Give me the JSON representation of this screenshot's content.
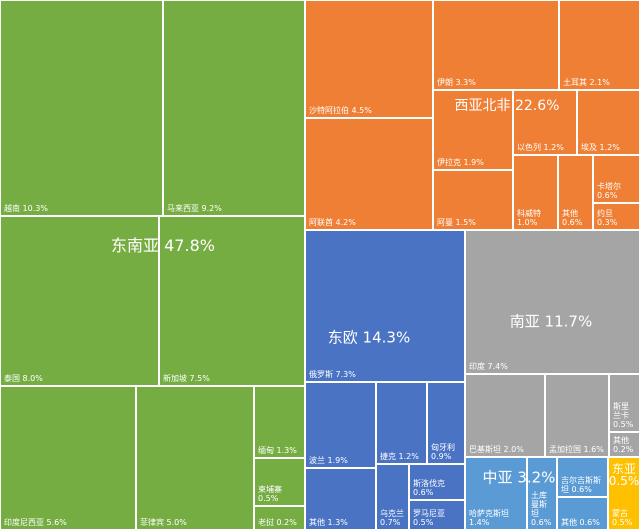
{
  "chart_data": {
    "type": "treemap",
    "colors": {
      "东南亚": "#76ad42",
      "西亚北非": "#ef7f34",
      "东欧": "#4a73c4",
      "南亚": "#a5a5a5",
      "中亚": "#5b9bd5",
      "东亚": "#ffc000"
    },
    "regions": [
      {
        "name": "东南亚",
        "value": 47.8,
        "label": "东南亚 47.8%",
        "items": [
          {
            "name": "越南",
            "value": 10.3,
            "label": "越南 10.3%"
          },
          {
            "name": "马来西亚",
            "value": 9.2,
            "label": "马来西亚 9.2%"
          },
          {
            "name": "泰国",
            "value": 8.0,
            "label": "泰国 8.0%"
          },
          {
            "name": "新加坡",
            "value": 7.5,
            "label": "新加坡 7.5%"
          },
          {
            "name": "印度尼西亚",
            "value": 5.6,
            "label": "印度尼西亚 5.6%"
          },
          {
            "name": "菲律宾",
            "value": 5.0,
            "label": "菲律宾 5.0%"
          },
          {
            "name": "缅甸",
            "value": 1.3,
            "label": "缅甸 1.3%"
          },
          {
            "name": "柬埔寨",
            "value": 0.5,
            "label": "柬埔寨\n0.5%"
          },
          {
            "name": "老挝",
            "value": 0.2,
            "label": "老挝 0.2%"
          }
        ]
      },
      {
        "name": "西亚北非",
        "value": 22.6,
        "label": "西亚北非 22.6%",
        "items": [
          {
            "name": "沙特阿拉伯",
            "value": 4.5,
            "label": "沙特阿拉伯 4.5%"
          },
          {
            "name": "阿联酋",
            "value": 4.2,
            "label": "阿联酋 4.2%"
          },
          {
            "name": "伊朗",
            "value": 3.3,
            "label": "伊朗 3.3%"
          },
          {
            "name": "土耳其",
            "value": 2.1,
            "label": "土耳其 2.1%"
          },
          {
            "name": "伊拉克",
            "value": 1.9,
            "label": "伊拉克 1.9%"
          },
          {
            "name": "以色列",
            "value": 1.2,
            "label": "以色列 1.2%"
          },
          {
            "name": "埃及",
            "value": 1.2,
            "label": "埃及 1.2%"
          },
          {
            "name": "阿曼",
            "value": 1.5,
            "label": "阿曼 1.5%"
          },
          {
            "name": "科威特",
            "value": 1.0,
            "label": "科威特\n1.0%"
          },
          {
            "name": "其他",
            "value": 0.6,
            "label": "其他\n0.6%"
          },
          {
            "name": "卡塔尔",
            "value": 0.6,
            "label": "卡塔尔\n0.6%"
          },
          {
            "name": "约旦",
            "value": 0.3,
            "label": "约旦\n0.3%"
          }
        ]
      },
      {
        "name": "东欧",
        "value": 14.3,
        "label": "东欧 14.3%",
        "items": [
          {
            "name": "俄罗斯",
            "value": 7.3,
            "label": "俄罗斯 7.3%"
          },
          {
            "name": "波兰",
            "value": 1.9,
            "label": "波兰 1.9%"
          },
          {
            "name": "其他",
            "value": 1.3,
            "label": "其他 1.3%"
          },
          {
            "name": "捷克",
            "value": 1.2,
            "label": "捷克 1.2%"
          },
          {
            "name": "匈牙利",
            "value": 0.9,
            "label": "匈牙利\n0.9%"
          },
          {
            "name": "斯洛伐克",
            "value": 0.6,
            "label": "斯洛伐克\n0.6%"
          },
          {
            "name": "乌克兰",
            "value": 0.7,
            "label": "乌克兰\n0.7%"
          },
          {
            "name": "罗马尼亚",
            "value": 0.5,
            "label": "罗马尼亚\n0.5%"
          }
        ]
      },
      {
        "name": "南亚",
        "value": 11.7,
        "label": "南亚 11.7%",
        "items": [
          {
            "name": "印度",
            "value": 7.4,
            "label": "印度 7.4%"
          },
          {
            "name": "巴基斯坦",
            "value": 2.0,
            "label": "巴基斯坦 2.0%"
          },
          {
            "name": "孟加拉国",
            "value": 1.6,
            "label": "孟加拉国 1.6%"
          },
          {
            "name": "斯里兰卡",
            "value": 0.5,
            "label": "斯里\n兰卡\n0.5%"
          },
          {
            "name": "其他",
            "value": 0.2,
            "label": "其他\n0.2%"
          }
        ]
      },
      {
        "name": "中亚",
        "value": 3.2,
        "label": "中亚 3.2%",
        "items": [
          {
            "name": "哈萨克斯坦",
            "value": 1.4,
            "label": "哈萨克斯坦\n1.4%"
          },
          {
            "name": "土库曼斯坦",
            "value": 0.6,
            "label": "土库\n曼斯\n坦\n0.6%"
          },
          {
            "name": "吉尔吉斯斯坦",
            "value": 0.6,
            "label": "吉尔吉斯斯\n坦 0.6%"
          },
          {
            "name": "其他",
            "value": 0.6,
            "label": "其他 0.6%"
          }
        ]
      },
      {
        "name": "东亚",
        "value": 0.5,
        "label": "东亚\n0.5%",
        "items": [
          {
            "name": "蒙古",
            "value": 0.5,
            "label": "蒙古\n0.5%"
          }
        ]
      }
    ]
  }
}
